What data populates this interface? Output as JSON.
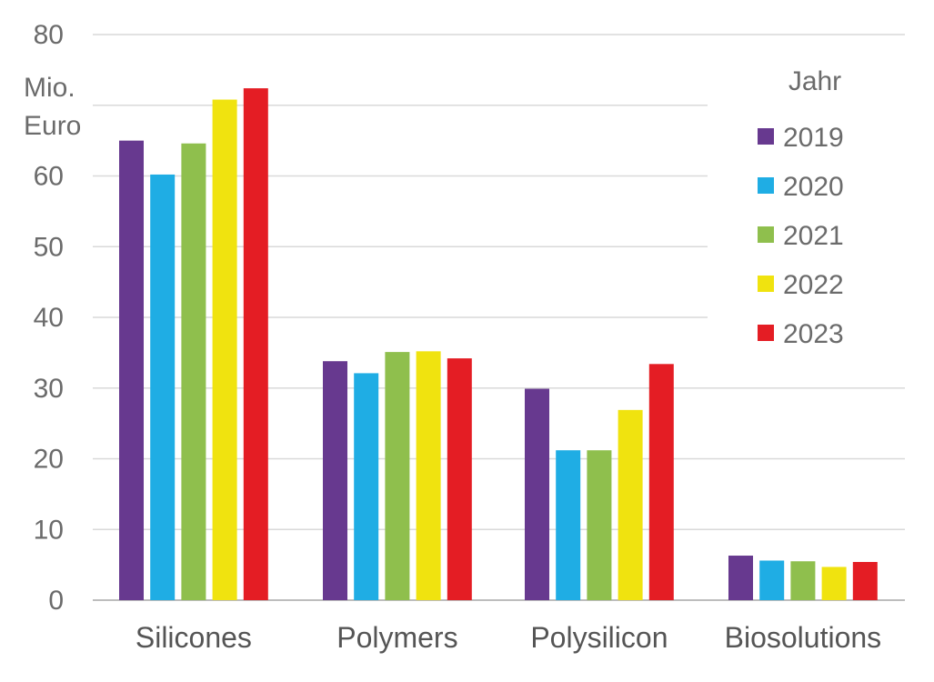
{
  "chart_data": {
    "type": "bar",
    "title": "",
    "xlabel": "",
    "ylabel": "",
    "unit_lines": [
      "Mio.",
      "Euro"
    ],
    "ylim": [
      0,
      80
    ],
    "yticks": [
      0,
      10,
      20,
      30,
      40,
      50,
      60,
      80
    ],
    "grid": true,
    "legend_title": "Jahr",
    "legend_position": "top-right",
    "categories": [
      "Silicones",
      "Polymers",
      "Polysilicon",
      "Biosolutions"
    ],
    "series": [
      {
        "name": "2019",
        "color": "#67398f",
        "values": [
          65.0,
          33.8,
          29.9,
          6.3
        ]
      },
      {
        "name": "2020",
        "color": "#1fade4",
        "values": [
          60.2,
          32.1,
          21.2,
          5.6
        ]
      },
      {
        "name": "2021",
        "color": "#8fbf4d",
        "values": [
          64.6,
          35.1,
          21.2,
          5.5
        ]
      },
      {
        "name": "2022",
        "color": "#f0e30f",
        "values": [
          70.8,
          35.2,
          26.9,
          4.7
        ]
      },
      {
        "name": "2023",
        "color": "#e41d24",
        "values": [
          72.4,
          34.2,
          33.4,
          5.4
        ]
      }
    ]
  }
}
